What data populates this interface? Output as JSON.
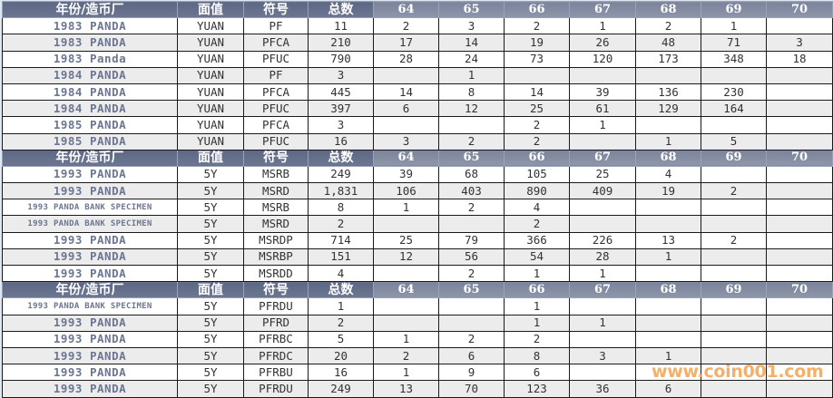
{
  "header": [
    "年份/造币厂",
    "面值",
    "符号",
    "总数",
    "64",
    "65",
    "66",
    "67",
    "68",
    "69",
    "70"
  ],
  "sections": [
    {
      "rows": [
        [
          "1983 PANDA",
          "YUAN",
          "PF",
          "11",
          "2",
          "3",
          "2",
          "1",
          "2",
          "1",
          ""
        ],
        [
          "1983 PANDA",
          "YUAN",
          "PFCA",
          "210",
          "17",
          "14",
          "19",
          "26",
          "48",
          "71",
          "3"
        ],
        [
          "1983 Panda",
          "YUAN",
          "PFUC",
          "790",
          "28",
          "24",
          "73",
          "120",
          "173",
          "348",
          "18"
        ],
        [
          "1984 PANDA",
          "YUAN",
          "PF",
          "3",
          "",
          "1",
          "",
          "",
          "",
          "",
          ""
        ],
        [
          "1984 PANDA",
          "YUAN",
          "PFCA",
          "445",
          "14",
          "8",
          "14",
          "39",
          "136",
          "230",
          ""
        ],
        [
          "1984 PANDA",
          "YUAN",
          "PFUC",
          "397",
          "6",
          "12",
          "25",
          "61",
          "129",
          "164",
          ""
        ],
        [
          "1985 PANDA",
          "YUAN",
          "PFCA",
          "3",
          "",
          "",
          "2",
          "1",
          "",
          "",
          ""
        ],
        [
          "1985 PANDA",
          "YUAN",
          "PFUC",
          "16",
          "3",
          "2",
          "2",
          "",
          "1",
          "5",
          ""
        ]
      ]
    },
    {
      "rows": [
        [
          "1993 PANDA",
          "5Y",
          "MSRB",
          "249",
          "39",
          "68",
          "105",
          "25",
          "4",
          "",
          ""
        ],
        [
          "1993 PANDA",
          "5Y",
          "MSRD",
          "1,831",
          "106",
          "403",
          "890",
          "409",
          "19",
          "2",
          ""
        ],
        [
          "1993 PANDA BANK SPECIMEN",
          "5Y",
          "MSRB",
          "8",
          "1",
          "2",
          "4",
          "",
          "",
          "",
          ""
        ],
        [
          "1993 PANDA BANK SPECIMEN",
          "5Y",
          "MSRD",
          "2",
          "",
          "",
          "2",
          "",
          "",
          "",
          ""
        ],
        [
          "1993 PANDA",
          "5Y",
          "MSRDP",
          "714",
          "25",
          "79",
          "366",
          "226",
          "13",
          "2",
          ""
        ],
        [
          "1993 PANDA",
          "5Y",
          "MSRBP",
          "151",
          "12",
          "56",
          "54",
          "28",
          "1",
          "",
          ""
        ],
        [
          "1993 PANDA",
          "5Y",
          "MSRDD",
          "4",
          "",
          "2",
          "1",
          "1",
          "",
          "",
          ""
        ]
      ]
    },
    {
      "rows": [
        [
          "1993 PANDA BANK SPECIMEN",
          "5Y",
          "PFRDU",
          "1",
          "",
          "",
          "1",
          "",
          "",
          "",
          ""
        ],
        [
          "1993 PANDA",
          "5Y",
          "PFRD",
          "2",
          "",
          "",
          "1",
          "1",
          "",
          "",
          ""
        ],
        [
          "1993 PANDA",
          "5Y",
          "PFRBC",
          "5",
          "1",
          "2",
          "2",
          "",
          "",
          "",
          ""
        ],
        [
          "1993 PANDA",
          "5Y",
          "PFRDC",
          "20",
          "2",
          "6",
          "8",
          "3",
          "1",
          "",
          ""
        ],
        [
          "1993 PANDA",
          "5Y",
          "PFRBU",
          "16",
          "1",
          "9",
          "6",
          "",
          "",
          "",
          ""
        ],
        [
          "1993 PANDA",
          "5Y",
          "PFRDU",
          "249",
          "13",
          "70",
          "123",
          "36",
          "6",
          "",
          ""
        ]
      ]
    }
  ],
  "watermark": "www.coin001.com",
  "colors": {
    "header_bg": "#5d6884",
    "name_text": "#6c7690",
    "alt_row": "#ececec",
    "watermark": "#f3a85a"
  }
}
